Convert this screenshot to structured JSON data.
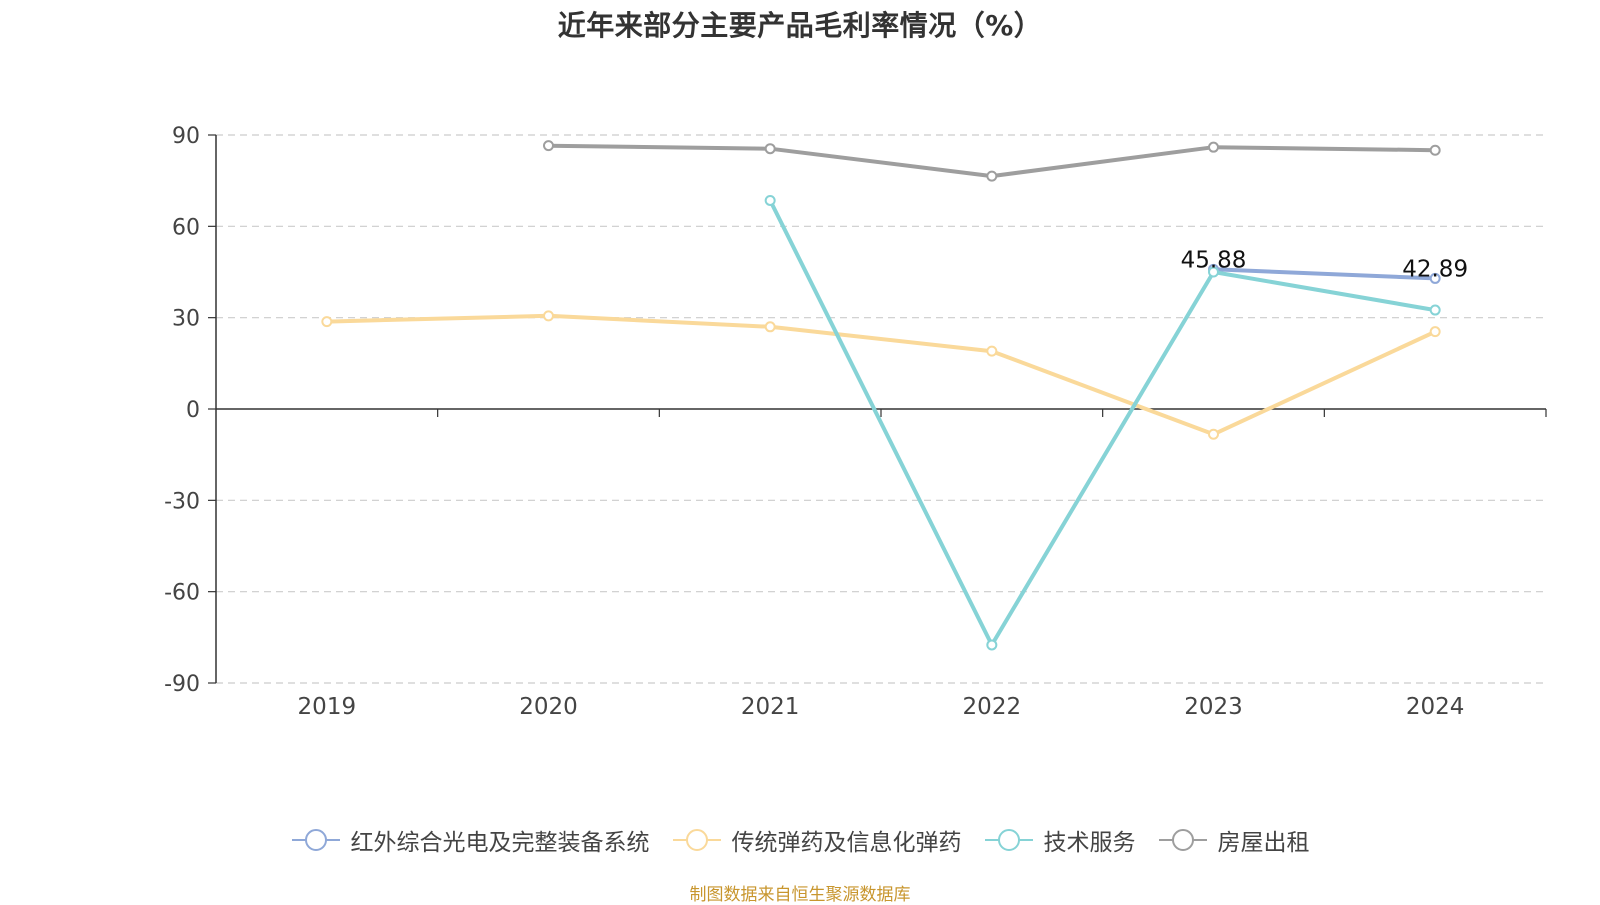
{
  "chart_data": {
    "type": "line",
    "title": "近年来部分主要产品毛利率情况（%）",
    "categories": [
      "2019",
      "2020",
      "2021",
      "2022",
      "2023",
      "2024"
    ],
    "ylim": [
      -90,
      90
    ],
    "yticks": [
      90,
      60,
      30,
      0,
      -30,
      -60,
      -90
    ],
    "grid": true,
    "legend_position": "bottom",
    "series": [
      {
        "name": "红外综合光电及完整装备系统",
        "color": "#8fa8d8",
        "values": [
          null,
          null,
          null,
          null,
          45.88,
          42.89
        ],
        "labels": [
          null,
          null,
          null,
          null,
          "45.88",
          "42.89"
        ]
      },
      {
        "name": "传统弹药及信息化弹药",
        "color": "#fad99a",
        "values": [
          28.7,
          30.6,
          27.0,
          19.0,
          -8.3,
          25.4
        ]
      },
      {
        "name": "技术服务",
        "color": "#86d3d6",
        "values": [
          null,
          null,
          68.5,
          -77.5,
          45.0,
          32.5
        ]
      },
      {
        "name": "房屋出租",
        "color": "#9e9e9e",
        "values": [
          null,
          86.5,
          85.5,
          76.5,
          86.0,
          85.0
        ]
      }
    ]
  },
  "source": "制图数据来自恒生聚源数据库"
}
